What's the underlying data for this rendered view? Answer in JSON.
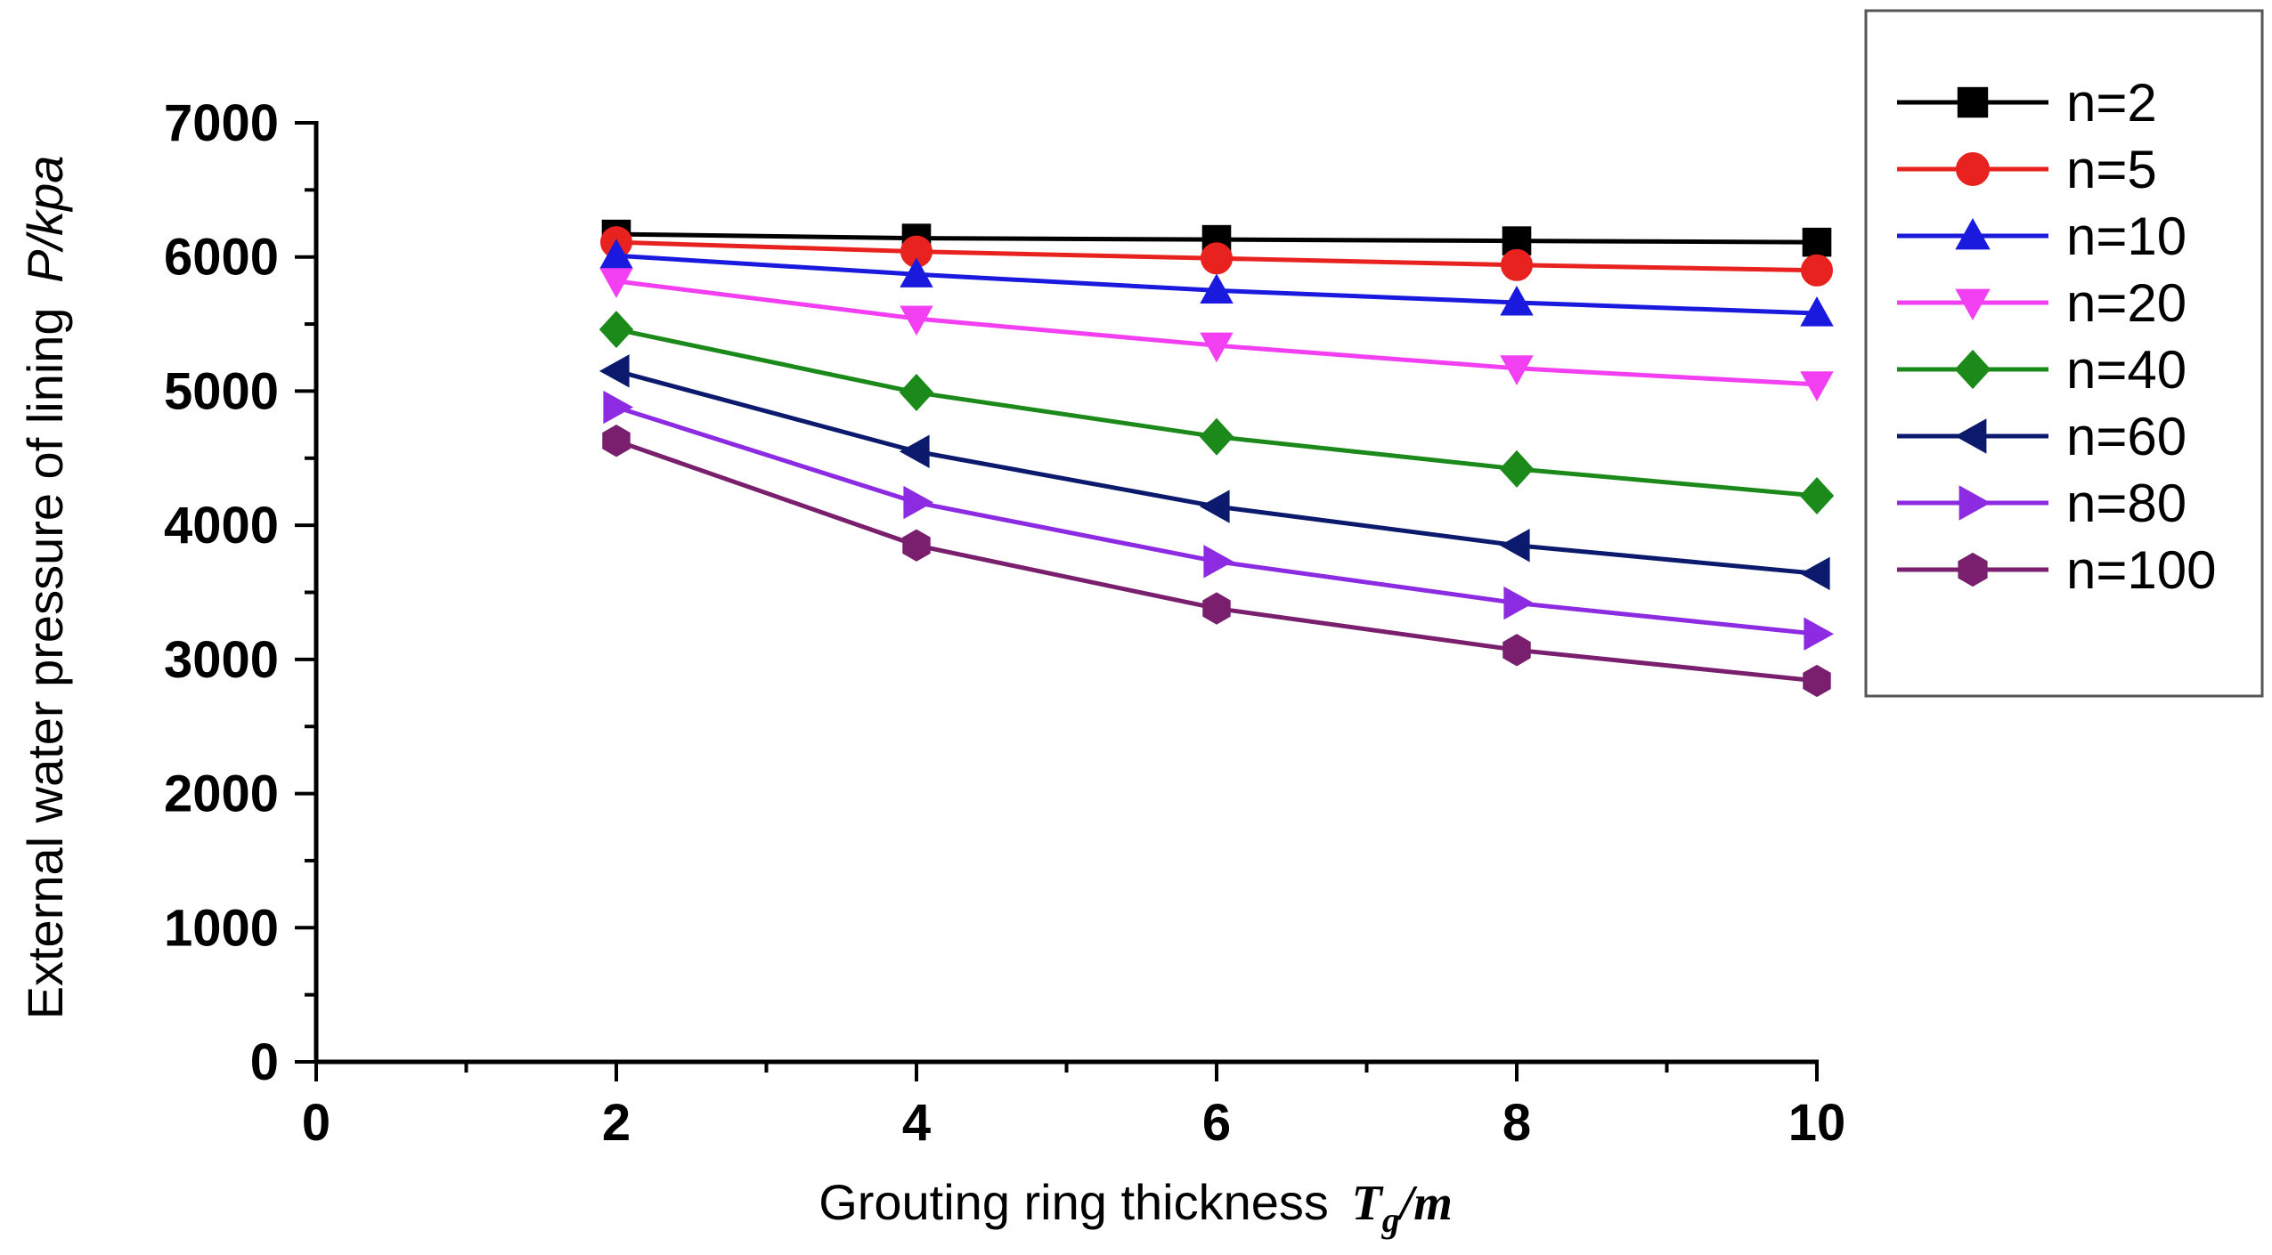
{
  "chart_data": {
    "type": "line",
    "title": "",
    "xlabel": "Grouting ring thickness",
    "xlabel_symbol": "T",
    "xlabel_subscript": "g",
    "xlabel_unit": "/m",
    "ylabel": "External water pressure of lining",
    "ylabel_unit": "P/kpa",
    "xlim": [
      0,
      10
    ],
    "ylim": [
      0,
      7000
    ],
    "x_ticks": [
      "0",
      "2",
      "4",
      "6",
      "8",
      "10"
    ],
    "y_ticks": [
      "0",
      "1000",
      "2000",
      "3000",
      "4000",
      "5000",
      "6000",
      "7000"
    ],
    "x": [
      2,
      4,
      6,
      8,
      10
    ],
    "legend_position": "top-right",
    "series": [
      {
        "name": "n=2",
        "color": "#000000",
        "marker": "square",
        "values": [
          6170,
          6140,
          6130,
          6120,
          6110
        ]
      },
      {
        "name": "n=5",
        "color": "#e8231f",
        "marker": "circle",
        "values": [
          6110,
          6040,
          5990,
          5940,
          5900
        ]
      },
      {
        "name": "n=10",
        "color": "#1a1adf",
        "marker": "triangle-up",
        "values": [
          6010,
          5870,
          5750,
          5660,
          5580
        ]
      },
      {
        "name": "n=20",
        "color": "#f23ff2",
        "marker": "triangle-down",
        "values": [
          5820,
          5540,
          5340,
          5170,
          5050
        ]
      },
      {
        "name": "n=40",
        "color": "#1b8a1b",
        "marker": "diamond",
        "values": [
          5460,
          4990,
          4660,
          4420,
          4220
        ]
      },
      {
        "name": "n=60",
        "color": "#0c1a6e",
        "marker": "triangle-left",
        "values": [
          5150,
          4550,
          4140,
          3850,
          3640
        ]
      },
      {
        "name": "n=80",
        "color": "#8c2be2",
        "marker": "triangle-right",
        "values": [
          4880,
          4170,
          3730,
          3420,
          3190
        ]
      },
      {
        "name": "n=100",
        "color": "#7a1f6e",
        "marker": "hexagon",
        "values": [
          4630,
          3850,
          3380,
          3070,
          2840
        ]
      }
    ]
  }
}
